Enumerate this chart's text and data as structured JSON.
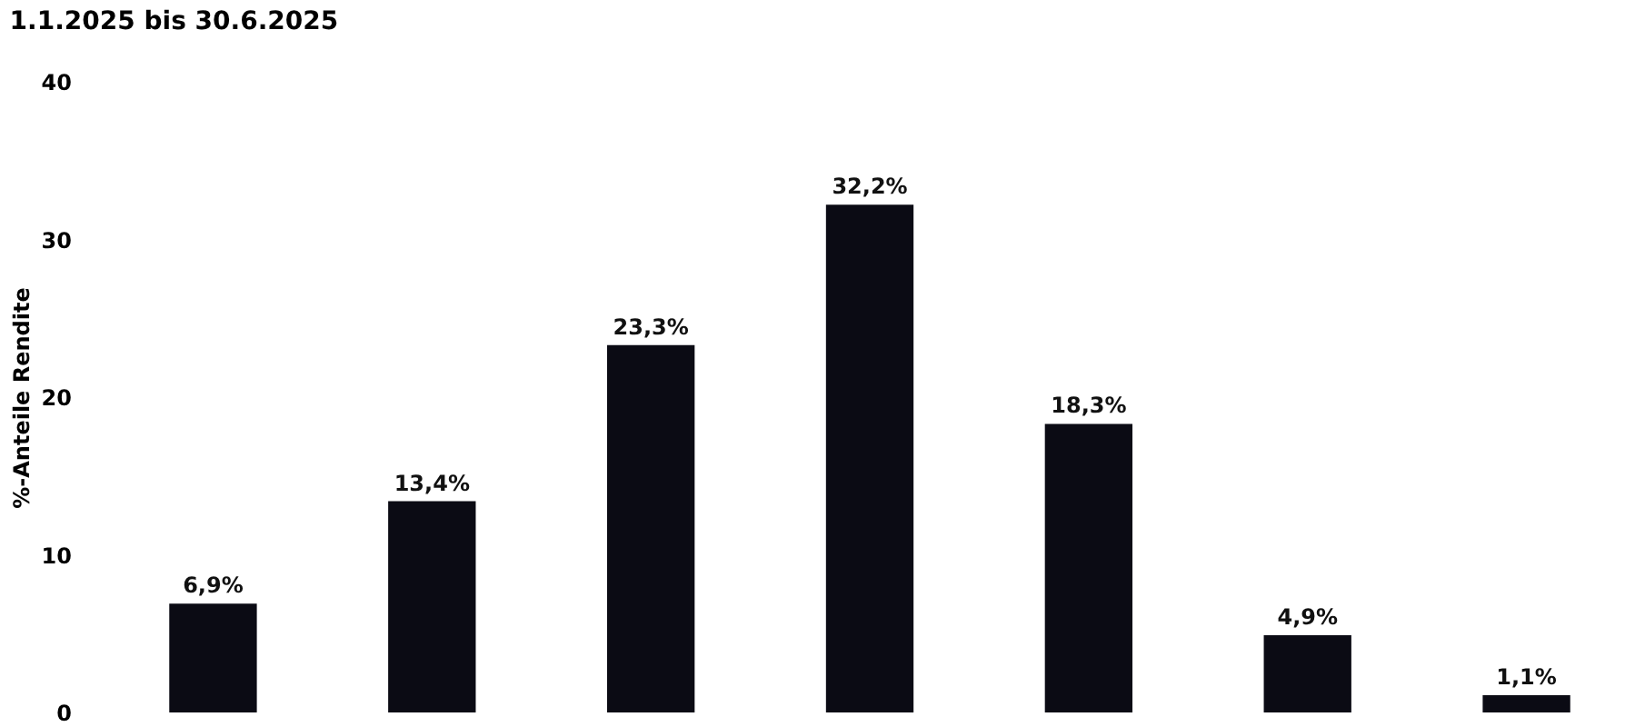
{
  "chart_data": {
    "type": "bar",
    "title": "1.1.2025 bis 30.6.2025",
    "ylabel": "%-Anteile Rendite",
    "categories": [
      null,
      null,
      null,
      null,
      null,
      null,
      null
    ],
    "values": [
      6.9,
      13.4,
      23.3,
      32.2,
      18.3,
      4.9,
      1.1
    ],
    "value_labels": [
      "6,9%",
      "13,4%",
      "23,3%",
      "32,2%",
      "18,3%",
      "4,9%",
      "1,1%"
    ],
    "color": "#0b0b14",
    "ylim": [
      0,
      40
    ],
    "yticks": [
      0,
      10,
      20,
      30,
      40
    ],
    "grid": false,
    "tick_labels": "y"
  }
}
